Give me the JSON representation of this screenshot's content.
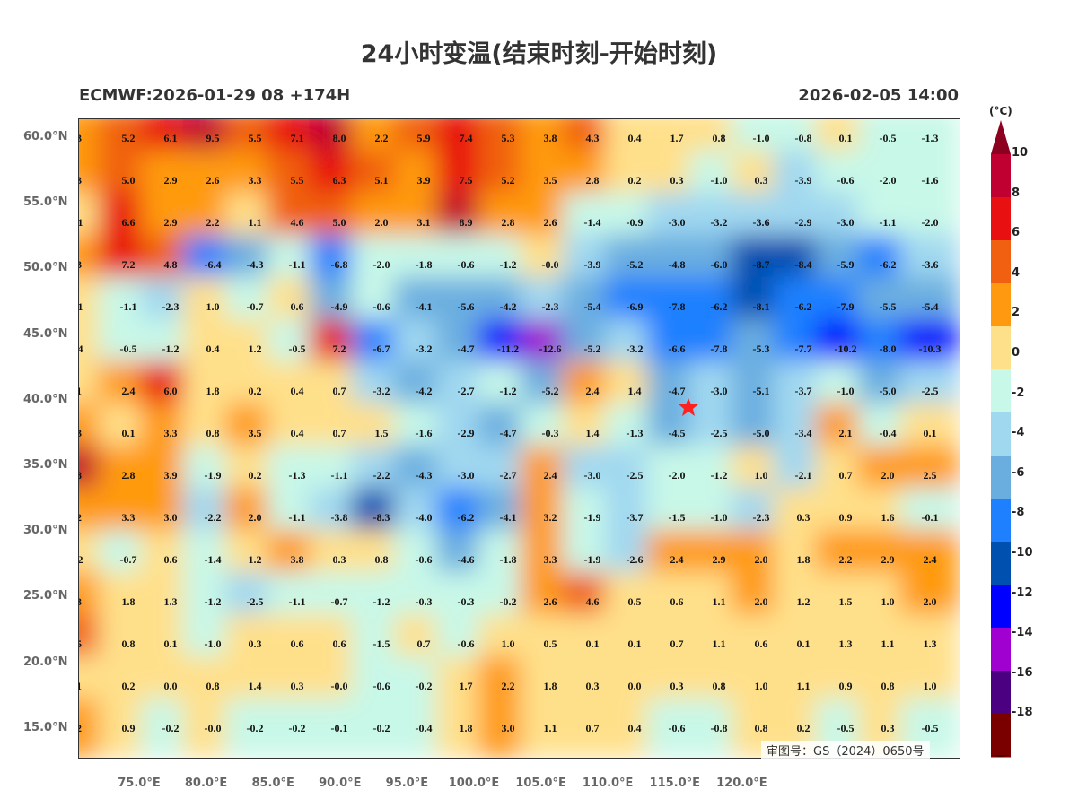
{
  "title": "24小时变温(结束时刻-开始时刻)",
  "model_run": "ECMWF:2026-01-29 08 +174H",
  "valid_time": "2026-02-05 14:00",
  "unit": "(°C)",
  "approval_number": "审图号：GS（2024）0650号",
  "lat_labels": [
    "60.0°N",
    "55.0°N",
    "50.0°N",
    "45.0°N",
    "40.0°N",
    "35.0°N",
    "30.0°N",
    "25.0°N",
    "20.0°N",
    "15.0°N"
  ],
  "lon_labels": [
    "75.0°E",
    "80.0°E",
    "85.0°E",
    "90.0°E",
    "95.0°E",
    "100.0°E",
    "105.0°E",
    "110.0°E",
    "115.0°E",
    "120.0°E"
  ],
  "colorbar": {
    "labels": [
      "10",
      "8",
      "6",
      "4",
      "2",
      "0",
      "-2",
      "-4",
      "-6",
      "-8",
      "-10",
      "-12",
      "-14",
      "-16",
      "-18"
    ],
    "colors": [
      "#8c0020",
      "#c00030",
      "#e81010",
      "#f06010",
      "#ff9a10",
      "#ffe08a",
      "#c8f8e8",
      "#a0d8f0",
      "#6aaee0",
      "#1e80ff",
      "#0050b0",
      "#0000ff",
      "#a000d0",
      "#4b0082",
      "#7a0000",
      "#3a0000"
    ]
  },
  "marker": {
    "type": "red-star",
    "color": "#ff2020"
  },
  "grid_values": [
    [
      "3",
      "5.2",
      "6.1",
      "9.5",
      "5.5",
      "7.1",
      "8.0",
      "2.2",
      "5.9",
      "7.4",
      "5.3",
      "3.8",
      "4.3",
      "0.4",
      "1.7",
      "0.8",
      "-1.0",
      "-0.8",
      "0.1",
      "-0.5",
      "-1.3"
    ],
    [
      "3",
      "5.0",
      "2.9",
      "2.6",
      "3.3",
      "5.5",
      "6.3",
      "5.1",
      "3.9",
      "7.5",
      "5.2",
      "3.5",
      "2.8",
      "0.2",
      "0.3",
      "-1.0",
      "0.3",
      "-3.9",
      "-0.6",
      "-2.0",
      "-1.6"
    ],
    [
      ".1",
      "6.6",
      "2.9",
      "2.2",
      "1.1",
      "4.6",
      "5.0",
      "2.0",
      "3.1",
      "8.9",
      "2.8",
      "2.6",
      "-1.4",
      "-0.9",
      "-3.0",
      "-3.2",
      "-3.6",
      "-2.9",
      "-3.0",
      "-1.1",
      "-2.0"
    ],
    [
      "3",
      "7.2",
      "4.8",
      "-6.4",
      "-4.3",
      "-1.1",
      "-6.8",
      "-2.0",
      "-1.8",
      "-0.6",
      "-1.2",
      "-0.0",
      "-3.9",
      "-5.2",
      "-4.8",
      "-6.0",
      "-8.7",
      "-8.4",
      "-5.9",
      "-6.2",
      "-3.6"
    ],
    [
      ".1",
      "-1.1",
      "-2.3",
      "1.0",
      "-0.7",
      "0.6",
      "-4.9",
      "-0.6",
      "-4.1",
      "-5.6",
      "-4.2",
      "-2.3",
      "-5.4",
      "-6.9",
      "-7.8",
      "-6.2",
      "-8.1",
      "-6.2",
      "-7.9",
      "-5.5",
      "-5.4"
    ],
    [
      ".4",
      "-0.5",
      "-1.2",
      "0.4",
      "1.2",
      "-0.5",
      "7.2",
      "-6.7",
      "-3.2",
      "-4.7",
      "-11.2",
      "-12.6",
      "-5.2",
      "-3.2",
      "-6.6",
      "-7.8",
      "-5.3",
      "-7.7",
      "-10.2",
      "-8.0",
      "-10.3"
    ],
    [
      "1",
      "2.4",
      "6.0",
      "1.8",
      "0.2",
      "0.4",
      "0.7",
      "-3.2",
      "-4.2",
      "-2.7",
      "-1.2",
      "-5.2",
      "2.4",
      "1.4",
      "-4.7",
      "-3.0",
      "-5.1",
      "-3.7",
      "-1.0",
      "-5.0",
      "-2.5"
    ],
    [
      "3",
      "0.1",
      "3.3",
      "0.8",
      "3.5",
      "0.4",
      "0.7",
      "1.5",
      "-1.6",
      "-2.9",
      "-4.7",
      "-0.3",
      "1.4",
      "-1.3",
      "-4.5",
      "-2.5",
      "-5.0",
      "-3.4",
      "2.1",
      "-0.4",
      "0.1"
    ],
    [
      "8",
      "2.8",
      "3.9",
      "-1.9",
      "0.2",
      "-1.3",
      "-1.1",
      "-2.2",
      "-4.3",
      "-3.0",
      "-2.7",
      "2.4",
      "-3.0",
      "-2.5",
      "-2.0",
      "-1.2",
      "1.0",
      "-2.1",
      "0.7",
      "2.0",
      "2.5"
    ],
    [
      "2",
      "3.3",
      "3.0",
      "-2.2",
      "2.0",
      "-1.1",
      "-3.8",
      "-8.3",
      "-4.0",
      "-6.2",
      "-4.1",
      "3.2",
      "-1.9",
      "-3.7",
      "-1.5",
      "-1.0",
      "-2.3",
      "0.3",
      "0.9",
      "1.6",
      "-0.1"
    ],
    [
      ".2",
      "-0.7",
      "0.6",
      "-1.4",
      "1.2",
      "3.8",
      "0.3",
      "0.8",
      "-0.6",
      "-4.6",
      "-1.8",
      "3.3",
      "-1.9",
      "-2.6",
      "2.4",
      "2.9",
      "2.0",
      "1.8",
      "2.2",
      "2.9",
      "2.4"
    ],
    [
      "3",
      "1.8",
      "1.3",
      "-1.2",
      "-2.5",
      "-1.1",
      "-0.7",
      "-1.2",
      "-0.3",
      "-0.3",
      "-0.2",
      "2.6",
      "4.6",
      "0.5",
      "0.6",
      "1.1",
      "2.0",
      "1.2",
      "1.5",
      "1.0",
      "2.0"
    ],
    [
      "5",
      "0.8",
      "0.1",
      "-1.0",
      "0.3",
      "0.6",
      "0.6",
      "-1.5",
      "0.7",
      "-0.6",
      "1.0",
      "0.5",
      "0.1",
      "0.1",
      "0.7",
      "1.1",
      "0.6",
      "0.1",
      "1.3",
      "1.1",
      "1.3"
    ],
    [
      "1",
      "0.2",
      "0.0",
      "0.8",
      "1.4",
      "0.3",
      "-0.0",
      "-0.6",
      "-0.2",
      "1.7",
      "2.2",
      "1.8",
      "0.3",
      "0.0",
      "0.3",
      "0.8",
      "1.0",
      "1.1",
      "0.9",
      "0.8",
      "1.0"
    ],
    [
      "2",
      "0.9",
      "-0.2",
      "-0.0",
      "-0.2",
      "-0.2",
      "-0.1",
      "-0.2",
      "-0.4",
      "1.8",
      "3.0",
      "1.1",
      "0.7",
      "0.4",
      "-0.6",
      "-0.8",
      "0.8",
      "0.2",
      "-0.5",
      "0.3",
      "-0.5"
    ]
  ]
}
